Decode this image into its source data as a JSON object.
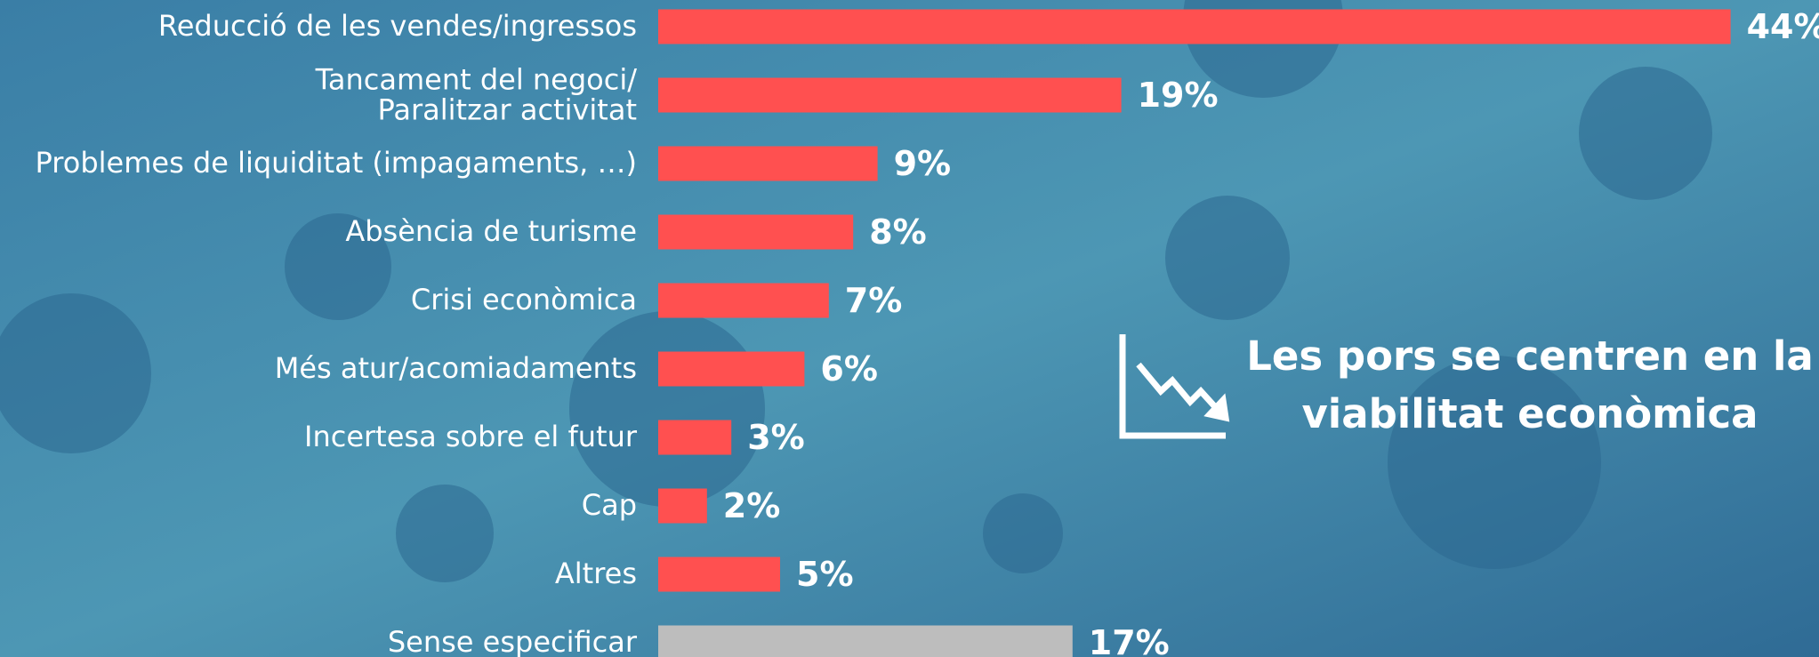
{
  "chart_data": {
    "type": "hbar",
    "categories": [
      "Reducció de les vendes/ingressos",
      "Tancament del negoci/\nParalitzar activitat",
      "Problemes de liquiditat (impagaments, …)",
      "Absència de turisme",
      "Crisi econòmica",
      "Més atur/acomiadaments",
      "Incertesa sobre el futur",
      "Cap",
      "Altres",
      "Sense especificar"
    ],
    "values": [
      44,
      19,
      9,
      8,
      7,
      6,
      3,
      2,
      5,
      17
    ],
    "value_labels": [
      "44%",
      "19%",
      "9%",
      "8%",
      "7%",
      "6%",
      "3%",
      "2%",
      "5%",
      "17%"
    ],
    "colors": [
      "#ff5050",
      "#ff5050",
      "#ff5050",
      "#ff5050",
      "#ff5050",
      "#ff5050",
      "#ff5050",
      "#ff5050",
      "#ff5050",
      "#bdbdbd"
    ],
    "annotation": "Les pors se centren en la viabilitat econòmica"
  }
}
